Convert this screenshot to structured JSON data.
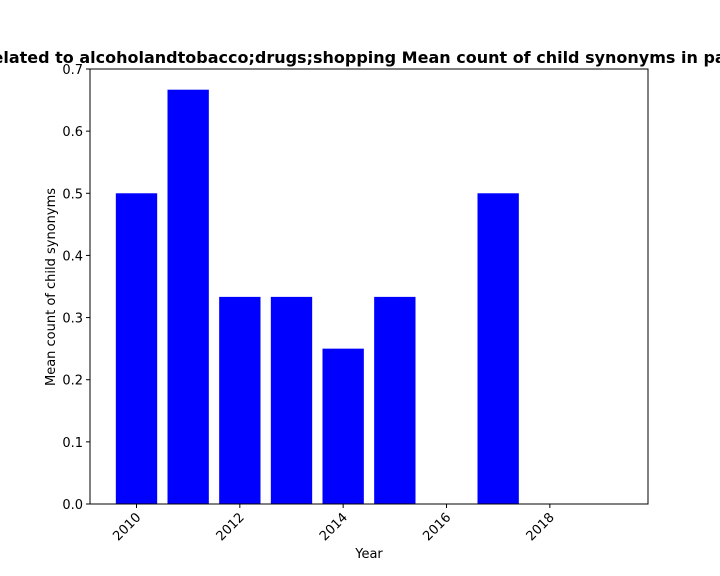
{
  "chart_data": {
    "type": "bar",
    "title": "Words related to alcoholandtobacco;drugs;shopping Mean count of child synonyms in past years",
    "xlabel": "Year",
    "ylabel": "Mean count of child synonyms",
    "x": [
      2010,
      2011,
      2012,
      2013,
      2014,
      2015,
      2016,
      2017,
      2018,
      2019
    ],
    "values": [
      0.5,
      0.6667,
      0.3333,
      0.3333,
      0.25,
      0.3333,
      0,
      0.5,
      0,
      0
    ],
    "xlim": [
      2009.1,
      2019.9
    ],
    "ylim": [
      0,
      0.7
    ],
    "xticks": [
      2010,
      2012,
      2014,
      2016,
      2018
    ],
    "yticks": [
      "0.0",
      "0.1",
      "0.2",
      "0.3",
      "0.4",
      "0.5",
      "0.6",
      "0.7"
    ],
    "bar_color": "#0000ff",
    "grid": false
  }
}
